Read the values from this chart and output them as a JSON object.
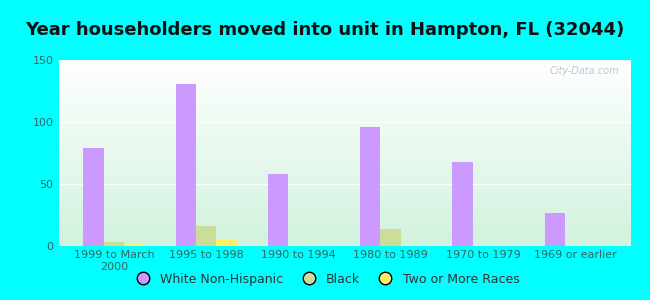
{
  "title": "Year householders moved into unit in Hampton, FL (32044)",
  "background_color": "#00FFFF",
  "categories": [
    "1999 to March\n2000",
    "1995 to 1998",
    "1990 to 1994",
    "1980 to 1989",
    "1970 to 1979",
    "1969 or earlier"
  ],
  "series": [
    {
      "name": "White Non-Hispanic",
      "color": "#cc99ff",
      "values": [
        79,
        131,
        58,
        96,
        68,
        27
      ]
    },
    {
      "name": "Black",
      "color": "#ccdd99",
      "values": [
        3,
        16,
        0,
        14,
        0,
        0
      ]
    },
    {
      "name": "Two or More Races",
      "color": "#ffee66",
      "values": [
        2,
        5,
        0,
        0,
        0,
        0
      ]
    }
  ],
  "ylim": [
    0,
    150
  ],
  "yticks": [
    0,
    50,
    100,
    150
  ],
  "bar_width": 0.22,
  "title_fontsize": 13,
  "tick_fontsize": 8,
  "legend_fontsize": 9,
  "tick_color": "#336666",
  "watermark": "City-Data.com"
}
